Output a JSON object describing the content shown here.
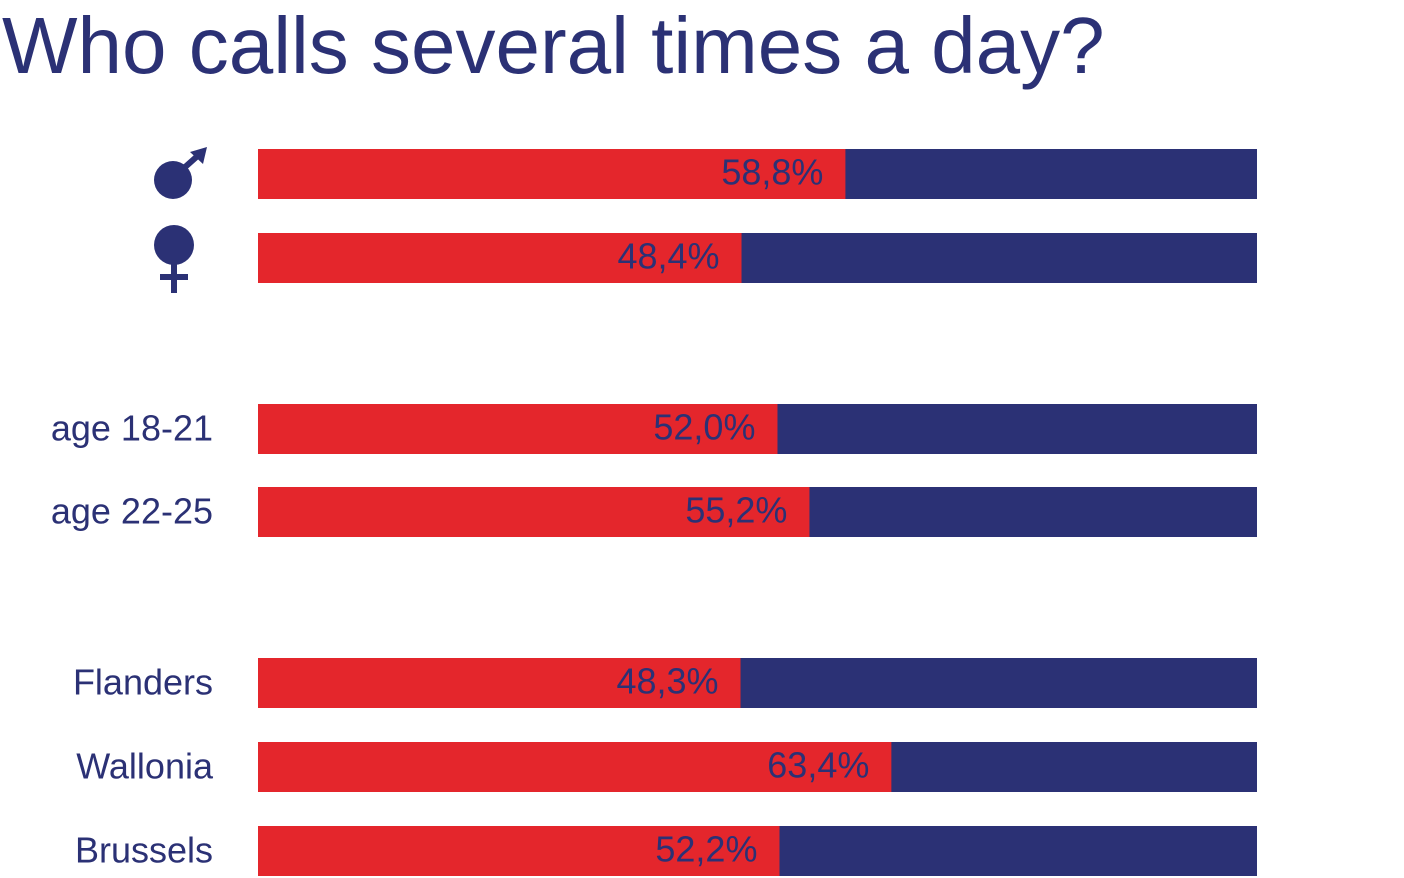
{
  "chart_data": {
    "type": "bar",
    "orientation": "horizontal",
    "title": "Who calls several times a day?",
    "categories": [
      null,
      null,
      "age 18-21",
      "age 22-25",
      "Flanders",
      "Wallonia",
      "Brussels"
    ],
    "values": [
      58.8,
      48.4,
      52.0,
      55.2,
      48.3,
      63.4,
      52.2
    ],
    "value_labels": [
      "58,8%",
      "48,4%",
      "52,0%",
      "55,2%",
      "48,3%",
      "63,4%",
      "52,2%"
    ],
    "color": "#e4262c",
    "xlim": [
      0,
      100
    ]
  }
}
